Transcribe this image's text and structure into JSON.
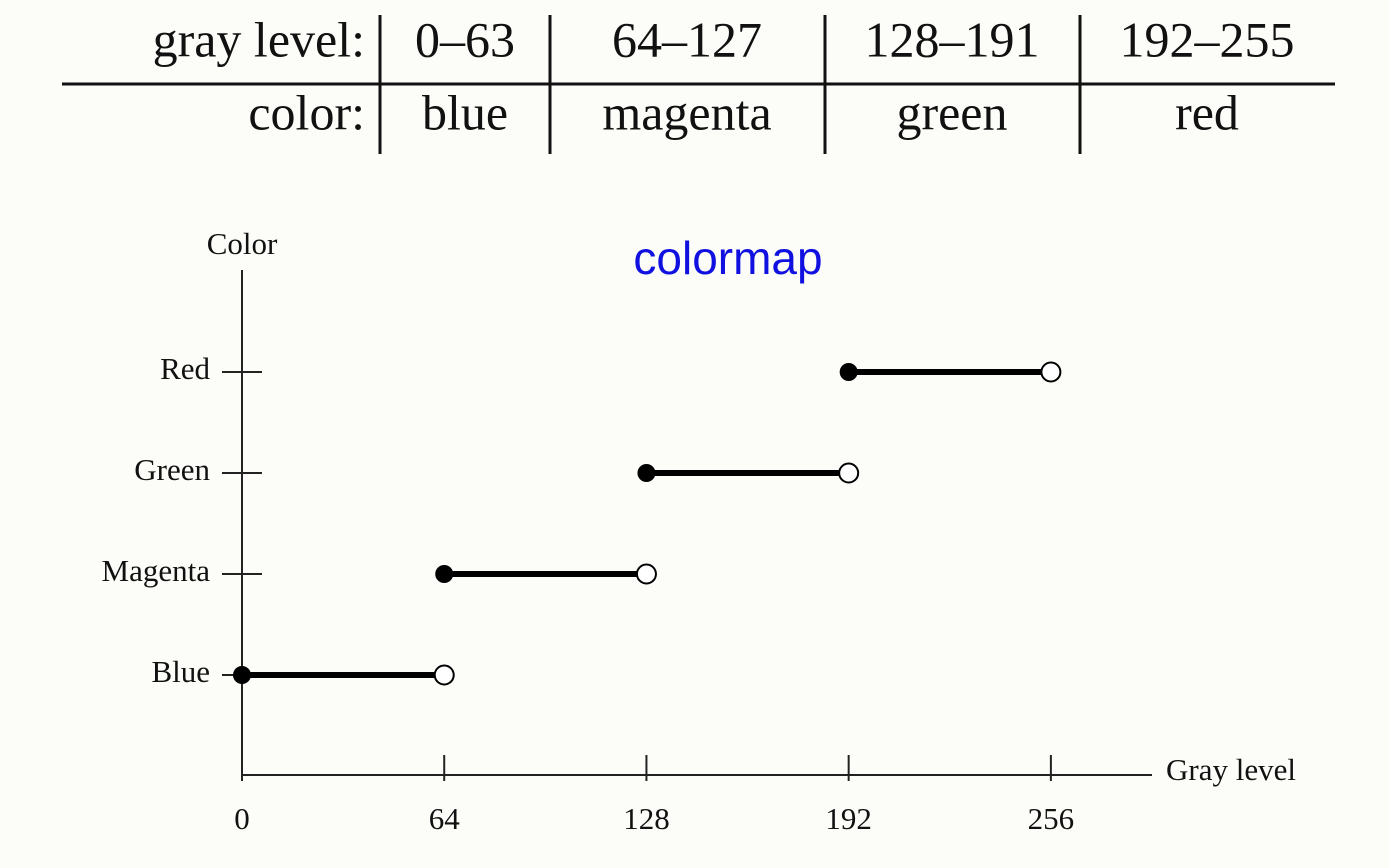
{
  "table": {
    "rows": [
      [
        "gray level:",
        "0–63",
        "64–127",
        "128–191",
        "192–255"
      ],
      [
        "color:",
        "blue",
        "magenta",
        "green",
        "red"
      ]
    ]
  },
  "chart_data": {
    "type": "interval",
    "title": "colormap",
    "xlabel": "Gray level",
    "ylabel": "Color",
    "categories": [
      "Blue",
      "Magenta",
      "Green",
      "Red"
    ],
    "starts": [
      0,
      64,
      128,
      192
    ],
    "ends": [
      64,
      128,
      192,
      256
    ],
    "color": "#000000",
    "xlim": [
      0,
      288
    ],
    "xticks": [
      0,
      64,
      128,
      192,
      256
    ],
    "title_color": "#1010e0"
  }
}
